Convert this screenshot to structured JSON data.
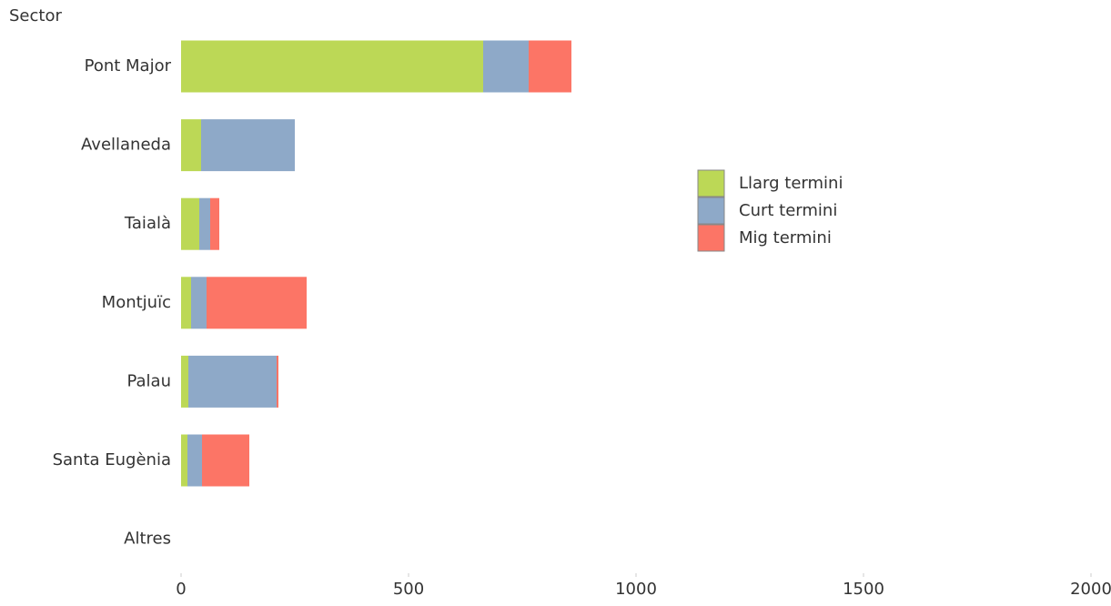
{
  "chart_data": {
    "type": "bar",
    "orientation": "horizontal",
    "stacked": true,
    "y_label": "Sector",
    "categories": [
      "Pont Major",
      "Avellaneda",
      "Taialà",
      "Montjuïc",
      "Palau",
      "Santa Eugènia",
      "Altres"
    ],
    "series": [
      {
        "name": "Llarg termini",
        "color": "#bcd856",
        "values": [
          664,
          44,
          40,
          22,
          16,
          14,
          null
        ]
      },
      {
        "name": "Curt termini",
        "color": "#8ea9c8",
        "values": [
          100,
          206,
          24,
          34,
          194,
          32,
          null
        ]
      },
      {
        "name": "Mig termini",
        "color": "#fc7566",
        "values": [
          94,
          0,
          20,
          220,
          4,
          104,
          null
        ]
      }
    ],
    "xlim": [
      0,
      2000
    ],
    "xticks": [
      0,
      500,
      1000,
      1500,
      2000
    ],
    "grid": false,
    "legend": "right"
  }
}
